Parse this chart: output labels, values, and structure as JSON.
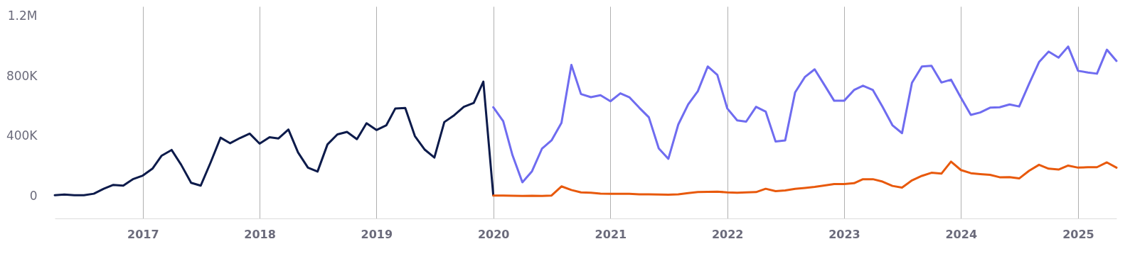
{
  "chart_data": {
    "type": "line",
    "xlim": [
      "2016-04",
      "2025-05"
    ],
    "xticks": [
      "2017",
      "2018",
      "2019",
      "2020",
      "2021",
      "2022",
      "2023",
      "2024",
      "2025"
    ],
    "ylim": [
      -150000,
      1265000
    ],
    "yticks": [
      {
        "value": 0,
        "label": "0"
      },
      {
        "value": 400000,
        "label": "400K"
      },
      {
        "value": 800000,
        "label": "800K"
      },
      {
        "value": 1200000,
        "label": "1.2M"
      }
    ],
    "grid": "x",
    "line_style": "solid",
    "marker": "none",
    "series": [
      {
        "color": "#0d1b4b",
        "x": [
          "2016-04",
          "2016-05",
          "2016-06",
          "2016-07",
          "2016-08",
          "2016-09",
          "2016-10",
          "2016-11",
          "2016-12",
          "2017-01",
          "2017-02",
          "2017-03",
          "2017-04",
          "2017-05",
          "2017-06",
          "2017-07",
          "2017-08",
          "2017-09",
          "2017-10",
          "2017-11",
          "2017-12",
          "2018-01",
          "2018-02",
          "2018-03",
          "2018-04",
          "2018-05",
          "2018-06",
          "2018-07",
          "2018-08",
          "2018-09",
          "2018-10",
          "2018-11",
          "2018-12",
          "2019-01",
          "2019-02",
          "2019-03",
          "2019-04",
          "2019-05",
          "2019-06",
          "2019-07",
          "2019-08",
          "2019-09",
          "2019-10",
          "2019-11",
          "2019-12",
          "2020-01"
        ],
        "values": [
          5000,
          10000,
          5000,
          5000,
          15000,
          48000,
          74000,
          69000,
          112000,
          136000,
          184000,
          269000,
          307000,
          208000,
          88000,
          69000,
          224000,
          389000,
          352000,
          387000,
          416000,
          349000,
          392000,
          384000,
          443000,
          291000,
          189000,
          163000,
          344000,
          411000,
          427000,
          379000,
          485000,
          440000,
          472000,
          584000,
          587000,
          400000,
          309000,
          256000,
          493000,
          539000,
          595000,
          621000,
          763000,
          5000
        ]
      },
      {
        "color": "#6f6cf0",
        "x": [
          "2020-01",
          "2020-02",
          "2020-03",
          "2020-04",
          "2020-05",
          "2020-06",
          "2020-07",
          "2020-08",
          "2020-09",
          "2020-10",
          "2020-11",
          "2020-12",
          "2021-01",
          "2021-02",
          "2021-03",
          "2021-04",
          "2021-05",
          "2021-06",
          "2021-07",
          "2021-08",
          "2021-09",
          "2021-10",
          "2021-11",
          "2021-12",
          "2022-01",
          "2022-02",
          "2022-03",
          "2022-04",
          "2022-05",
          "2022-06",
          "2022-07",
          "2022-08",
          "2022-09",
          "2022-10",
          "2022-11",
          "2022-12",
          "2023-01",
          "2023-02",
          "2023-03",
          "2023-04",
          "2023-05",
          "2023-06",
          "2023-07",
          "2023-08",
          "2023-09",
          "2023-10",
          "2023-11",
          "2023-12",
          "2024-01",
          "2024-02",
          "2024-03",
          "2024-04",
          "2024-05",
          "2024-06",
          "2024-07",
          "2024-08",
          "2024-09",
          "2024-10",
          "2024-11",
          "2024-12",
          "2025-01",
          "2025-02",
          "2025-03",
          "2025-04",
          "2025-05"
        ],
        "values": [
          592000,
          499000,
          272000,
          91000,
          165000,
          315000,
          371000,
          488000,
          875000,
          680000,
          659000,
          672000,
          632000,
          685000,
          659000,
          589000,
          525000,
          317000,
          248000,
          477000,
          611000,
          699000,
          864000,
          808000,
          584000,
          504000,
          496000,
          595000,
          563000,
          363000,
          371000,
          691000,
          795000,
          845000,
          739000,
          635000,
          635000,
          707000,
          736000,
          707000,
          595000,
          472000,
          419000,
          755000,
          864000,
          869000,
          757000,
          776000,
          656000,
          541000,
          557000,
          589000,
          592000,
          611000,
          597000,
          749000,
          893000,
          963000,
          923000,
          997000,
          835000,
          824000,
          816000,
          976000,
          901000
        ]
      },
      {
        "color": "#e8590c",
        "x": [
          "2020-01",
          "2020-02",
          "2020-03",
          "2020-04",
          "2020-05",
          "2020-06",
          "2020-07",
          "2020-08",
          "2020-09",
          "2020-10",
          "2020-11",
          "2020-12",
          "2021-01",
          "2021-02",
          "2021-03",
          "2021-04",
          "2021-05",
          "2021-06",
          "2021-07",
          "2021-08",
          "2021-09",
          "2021-10",
          "2021-11",
          "2021-12",
          "2022-01",
          "2022-02",
          "2022-03",
          "2022-04",
          "2022-05",
          "2022-06",
          "2022-07",
          "2022-08",
          "2022-09",
          "2022-10",
          "2022-11",
          "2022-12",
          "2023-01",
          "2023-02",
          "2023-03",
          "2023-04",
          "2023-05",
          "2023-06",
          "2023-07",
          "2023-08",
          "2023-09",
          "2023-10",
          "2023-11",
          "2023-12",
          "2024-01",
          "2024-02",
          "2024-03",
          "2024-04",
          "2024-05",
          "2024-06",
          "2024-07",
          "2024-08",
          "2024-09",
          "2024-10",
          "2024-11",
          "2024-12",
          "2025-01",
          "2025-02",
          "2025-03",
          "2025-04",
          "2025-05"
        ],
        "values": [
          3000,
          3000,
          2000,
          0,
          2000,
          0,
          3000,
          64000,
          40000,
          24000,
          22000,
          16000,
          14000,
          14000,
          14000,
          11000,
          11000,
          10000,
          8000,
          11000,
          19000,
          26000,
          27000,
          29000,
          24000,
          21000,
          24000,
          26000,
          48000,
          32000,
          37000,
          48000,
          54000,
          61000,
          70000,
          80000,
          80000,
          85000,
          112000,
          112000,
          96000,
          67000,
          56000,
          104000,
          134000,
          155000,
          149000,
          229000,
          173000,
          152000,
          146000,
          141000,
          125000,
          126000,
          117000,
          168000,
          208000,
          182000,
          176000,
          203000,
          189000,
          192000,
          192000,
          224000,
          189000
        ]
      }
    ]
  }
}
